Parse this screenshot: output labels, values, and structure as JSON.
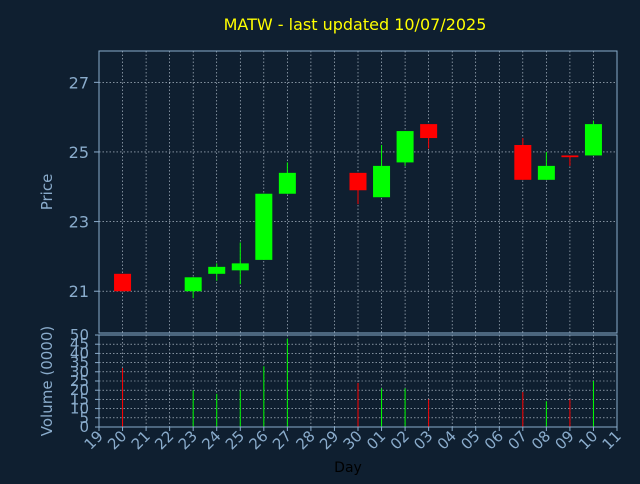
{
  "colors": {
    "background": "#0f1f30",
    "title": "#ffff00",
    "axis_text": "#8aaccc",
    "frame": "#8aaccc",
    "grid": "#c8d4e0",
    "up": "#00ff00",
    "down": "#ff0000",
    "xlabel": "#000000"
  },
  "chart_data": [
    {
      "type": "candlestick",
      "title": "MATW - last updated 10/07/2025",
      "ylabel": "Price",
      "ylim": [
        19.8,
        27.9
      ],
      "yticks": [
        21,
        23,
        25,
        27
      ],
      "grid": true,
      "x_ticklabels": [
        "19",
        "20",
        "21",
        "22",
        "23",
        "24",
        "25",
        "26",
        "27",
        "28",
        "29",
        "30",
        "01",
        "02",
        "03",
        "04",
        "05",
        "06",
        "07",
        "08",
        "09",
        "10",
        "11"
      ],
      "candles": [
        {
          "day": "20",
          "open": 21.5,
          "high": 21.5,
          "low": 21.0,
          "close": 21.0
        },
        {
          "day": "23",
          "open": 21.0,
          "high": 21.4,
          "low": 20.8,
          "close": 21.4
        },
        {
          "day": "24",
          "open": 21.5,
          "high": 21.8,
          "low": 21.3,
          "close": 21.7
        },
        {
          "day": "25",
          "open": 21.6,
          "high": 22.4,
          "low": 21.2,
          "close": 21.8
        },
        {
          "day": "26",
          "open": 21.9,
          "high": 23.8,
          "low": 21.9,
          "close": 23.8
        },
        {
          "day": "27",
          "open": 23.8,
          "high": 24.7,
          "low": 23.8,
          "close": 24.4
        },
        {
          "day": "30",
          "open": 24.4,
          "high": 24.4,
          "low": 23.5,
          "close": 23.9
        },
        {
          "day": "01",
          "open": 23.7,
          "high": 25.2,
          "low": 23.7,
          "close": 24.6
        },
        {
          "day": "02",
          "open": 24.7,
          "high": 25.6,
          "low": 24.6,
          "close": 25.6
        },
        {
          "day": "03",
          "open": 25.8,
          "high": 25.8,
          "low": 25.1,
          "close": 25.4
        },
        {
          "day": "07",
          "open": 25.2,
          "high": 25.4,
          "low": 24.2,
          "close": 24.2
        },
        {
          "day": "08",
          "open": 24.2,
          "high": 25.0,
          "low": 24.2,
          "close": 24.6
        },
        {
          "day": "09",
          "open": 24.9,
          "high": 24.9,
          "low": 24.6,
          "close": 24.85
        },
        {
          "day": "10",
          "open": 24.9,
          "high": 25.9,
          "low": 24.9,
          "close": 25.8
        }
      ]
    },
    {
      "type": "bar",
      "ylabel": "Volume (0000)",
      "xlabel": "Day",
      "ylim": [
        0,
        50
      ],
      "yticks": [
        0,
        5,
        10,
        15,
        20,
        25,
        30,
        35,
        40,
        45,
        50
      ],
      "grid": true,
      "x_ticklabels": [
        "19",
        "20",
        "21",
        "22",
        "23",
        "24",
        "25",
        "26",
        "27",
        "28",
        "29",
        "30",
        "01",
        "02",
        "03",
        "04",
        "05",
        "06",
        "07",
        "08",
        "09",
        "10",
        "11"
      ],
      "bars": [
        {
          "day": "20",
          "value": 32,
          "direction": "down"
        },
        {
          "day": "23",
          "value": 20,
          "direction": "up"
        },
        {
          "day": "24",
          "value": 18,
          "direction": "up"
        },
        {
          "day": "25",
          "value": 20,
          "direction": "up"
        },
        {
          "day": "26",
          "value": 33,
          "direction": "up"
        },
        {
          "day": "27",
          "value": 48,
          "direction": "up"
        },
        {
          "day": "30",
          "value": 24,
          "direction": "down"
        },
        {
          "day": "01",
          "value": 21,
          "direction": "up"
        },
        {
          "day": "02",
          "value": 21,
          "direction": "up"
        },
        {
          "day": "03",
          "value": 15,
          "direction": "down"
        },
        {
          "day": "07",
          "value": 19,
          "direction": "down"
        },
        {
          "day": "08",
          "value": 14,
          "direction": "up"
        },
        {
          "day": "09",
          "value": 15,
          "direction": "down"
        },
        {
          "day": "10",
          "value": 25,
          "direction": "up"
        }
      ]
    }
  ]
}
